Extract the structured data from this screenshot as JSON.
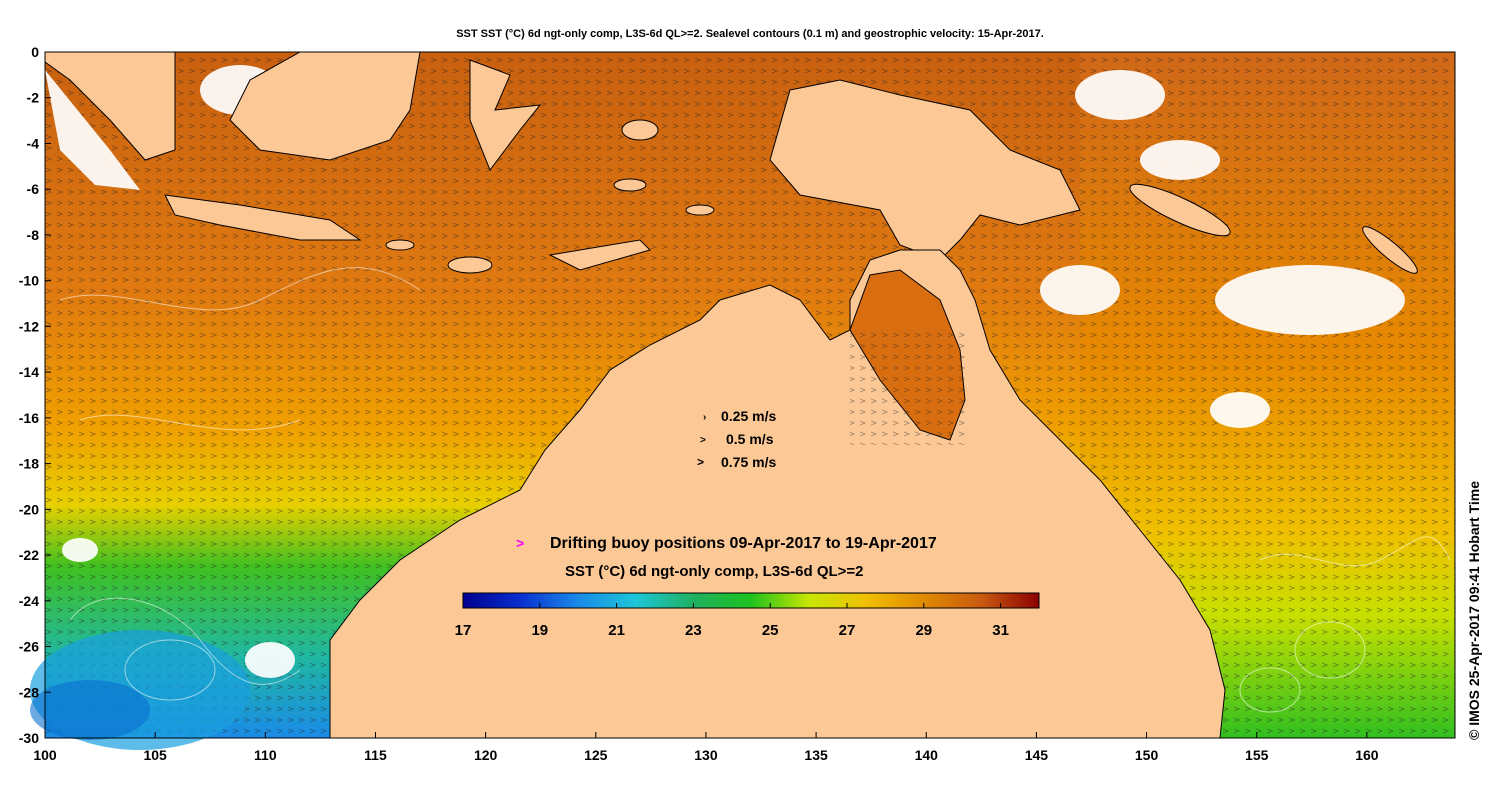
{
  "title": "SST SST (°C) 6d ngt-only comp, L3S-6d QL>=2. Sealevel contours (0.1 m) and geostrophic velocity: 15-Apr-2017.",
  "credit": "© IMOS 25-Apr-2017 09:41 Hobart Time",
  "velocity_legend": [
    {
      "label": "0.25 m/s",
      "glyph": "›"
    },
    {
      "label": "0.5 m/s",
      "glyph": ">"
    },
    {
      "label": "0.75 m/s",
      "glyph": ">"
    }
  ],
  "buoy_legend": {
    "glyph": ">",
    "label": "Drifting buoy positions 09-Apr-2017 to 19-Apr-2017",
    "color": "#ff00ff"
  },
  "colorbar": {
    "title": "SST (°C) 6d ngt-only comp, L3S-6d QL>=2",
    "min": 17,
    "max": 32,
    "ticks": [
      "17",
      "19",
      "21",
      "23",
      "25",
      "27",
      "29",
      "31"
    ],
    "tick_values": [
      17,
      19,
      21,
      23,
      25,
      27,
      29,
      31
    ],
    "stops": [
      "#00008f",
      "#0a2fd0",
      "#1a8be8",
      "#1cc6d8",
      "#1fb060",
      "#1ec21e",
      "#c8e600",
      "#f0c000",
      "#e08a00",
      "#c85a10",
      "#8b0000"
    ]
  },
  "x_axis": {
    "min": 100,
    "max": 164,
    "ticks": [
      "100",
      "105",
      "110",
      "115",
      "120",
      "125",
      "130",
      "135",
      "140",
      "145",
      "150",
      "155",
      "160"
    ]
  },
  "y_axis": {
    "min": -30,
    "max": 0,
    "ticks": [
      "0",
      "-2",
      "-4",
      "-6",
      "-8",
      "-10",
      "-12",
      "-14",
      "-16",
      "-18",
      "-20",
      "-22",
      "-24",
      "-26",
      "-28",
      "-30"
    ]
  },
  "colors": {
    "land": "#fcc896",
    "ocean_warm": "#e07a10",
    "ocean_mid": "#e8a000",
    "ocean_cool": "#1ec21e",
    "ocean_cold": "#1a8be8",
    "cloud": "#ffffff"
  }
}
